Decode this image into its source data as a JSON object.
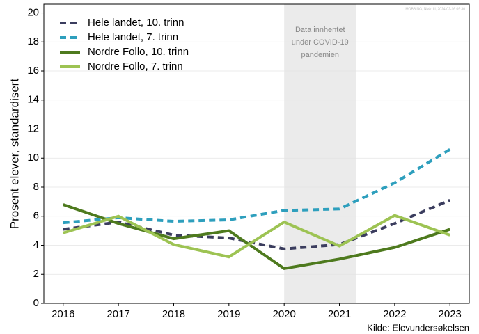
{
  "chart_data": {
    "type": "line",
    "watermark": "MOBBING, Nivå: III, 2024-02-16 09:30",
    "y_label": "Prosent elever, standardisert",
    "source": "Kilde: Elevundersøkelsen",
    "x": [
      2016,
      2017,
      2018,
      2019,
      2020,
      2021,
      2022,
      2023
    ],
    "xlim": [
      2015.65,
      2023.35
    ],
    "xticks": [
      2016,
      2017,
      2018,
      2019,
      2020,
      2021,
      2022,
      2023
    ],
    "ylim": [
      0,
      20.6
    ],
    "yticks": [
      0,
      2,
      4,
      6,
      8,
      10,
      12,
      14,
      16,
      18,
      20
    ],
    "grid": true,
    "legend": "upper left",
    "shade": {
      "x": [
        2020,
        2021.3
      ],
      "color": "#ebebeb",
      "text": [
        "Data innhentet",
        "under COVID-19",
        "pandemien"
      ]
    },
    "series": [
      {
        "name": "Hele landet, 10. trinn",
        "color": "#3b3d5e",
        "style": "dashed",
        "values": [
          5.1,
          5.6,
          4.7,
          4.5,
          3.75,
          4.05,
          5.5,
          7.1
        ]
      },
      {
        "name": "Hele landet, 7. trinn",
        "color": "#2e9fbd",
        "style": "dashed",
        "values": [
          5.55,
          5.9,
          5.65,
          5.75,
          6.4,
          6.5,
          8.3,
          10.6
        ]
      },
      {
        "name": "Nordre Follo, 10. trinn",
        "color": "#4e7a1e",
        "style": "solid",
        "values": [
          6.8,
          5.5,
          4.45,
          5.0,
          2.4,
          3.05,
          3.85,
          5.1
        ]
      },
      {
        "name": "Nordre Follo, 7. trinn",
        "color": "#9dc353",
        "style": "solid",
        "values": [
          4.85,
          6.0,
          4.05,
          3.2,
          5.6,
          3.95,
          6.05,
          4.7
        ]
      }
    ]
  }
}
